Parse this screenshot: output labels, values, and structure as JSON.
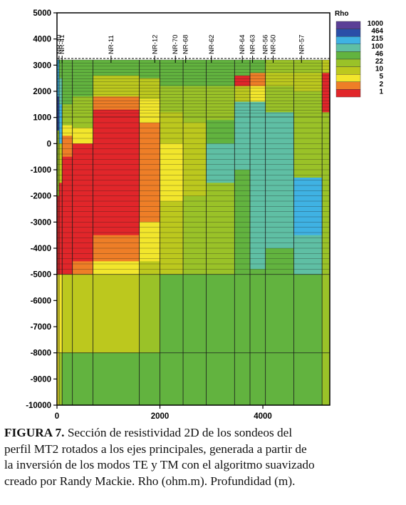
{
  "figure": {
    "legend_title": "Rho",
    "legend_colors": [
      "#5b3f97",
      "#2a4fa8",
      "#3fb2e3",
      "#5fbfa4",
      "#62b33f",
      "#9ac228",
      "#bcc81e",
      "#f2e62c",
      "#ee7e27",
      "#e1262a"
    ],
    "station_labels": [
      "NR-40",
      "NR-41",
      "NR-11",
      "NR-12",
      "NR-70",
      "NR-68",
      "NR-62",
      "NR-64",
      "NR-63",
      "NR-56",
      "NR-50",
      "NR-57"
    ]
  },
  "chart_data": {
    "type": "heatmap",
    "title": "",
    "xlabel": "",
    "ylabel": "",
    "x_ticks": [
      "0",
      "2000",
      "4000"
    ],
    "y_ticks": [
      "5000",
      "4000",
      "3000",
      "2000",
      "1000",
      "0",
      "-1000",
      "-2000",
      "-3000",
      "-4000",
      "-5000",
      "-6000",
      "-7000",
      "-8000",
      "-9000",
      "-10000"
    ],
    "xlim": [
      0,
      5300
    ],
    "ylim": [
      -10000,
      5000
    ],
    "legend_labels": [
      "1000",
      "464",
      "215",
      "100",
      "46",
      "22",
      "10",
      "5",
      "2",
      "1"
    ],
    "stations": [
      {
        "name": "NR-40",
        "x": 40
      },
      {
        "name": "NR-41",
        "x": 100
      },
      {
        "name": "NR-11",
        "x": 1050
      },
      {
        "name": "NR-12",
        "x": 1900
      },
      {
        "name": "NR-70",
        "x": 2300
      },
      {
        "name": "NR-68",
        "x": 2500
      },
      {
        "name": "NR-62",
        "x": 3000
      },
      {
        "name": "NR-64",
        "x": 3600
      },
      {
        "name": "NR-63",
        "x": 3800
      },
      {
        "name": "NR-56",
        "x": 4050
      },
      {
        "name": "NR-50",
        "x": 4200
      },
      {
        "name": "NR-57",
        "x": 4750
      }
    ]
  },
  "caption": {
    "label": "FIGURA 7.",
    "line1": " Sección de resistividad 2D de los sondeos del",
    "line2": "perfil MT2 rotados a los ejes principales,  generada a partir de",
    "line3": "la inversión de los modos TE y TM  con el algoritmo suavizado",
    "line4": "creado por Randy Mackie. Rho (ohm.m). Profundidad (m)."
  }
}
